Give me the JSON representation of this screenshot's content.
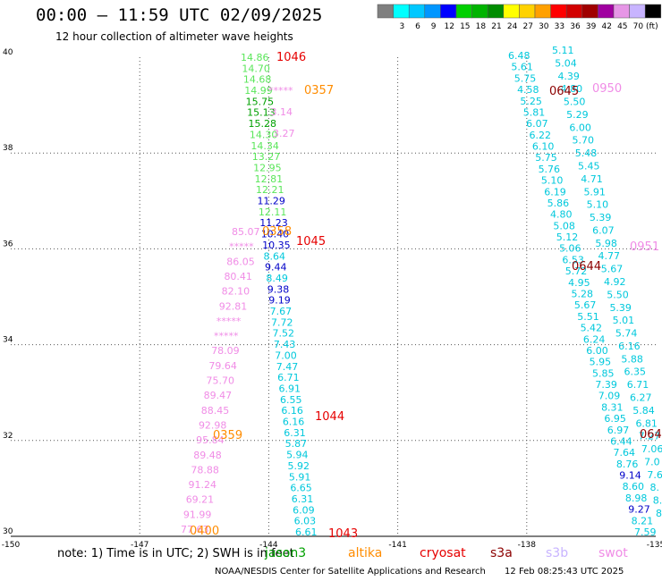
{
  "header": {
    "title": "00:00 – 11:59 UTC 02/09/2025",
    "subtitle": "12 hour collection of altimeter wave heights"
  },
  "legend": {
    "unit": "(ft)",
    "bins": [
      {
        "label": "",
        "color": "#7f7f7f"
      },
      {
        "label": "3",
        "color": "#00ffff"
      },
      {
        "label": "6",
        "color": "#00c8ff"
      },
      {
        "label": "9",
        "color": "#0096ff"
      },
      {
        "label": "12",
        "color": "#0000ff"
      },
      {
        "label": "15",
        "color": "#00d000"
      },
      {
        "label": "18",
        "color": "#00b400"
      },
      {
        "label": "21",
        "color": "#008c00"
      },
      {
        "label": "24",
        "color": "#ffff00"
      },
      {
        "label": "27",
        "color": "#ffd200"
      },
      {
        "label": "30",
        "color": "#ffa000"
      },
      {
        "label": "33",
        "color": "#ff0000"
      },
      {
        "label": "36",
        "color": "#d20000"
      },
      {
        "label": "39",
        "color": "#a00000"
      },
      {
        "label": "42",
        "color": "#a000a0"
      },
      {
        "label": "45",
        "color": "#e696e6"
      },
      {
        "label": "70",
        "color": "#c8b4ff"
      },
      {
        "label": "",
        "color": "#000000"
      }
    ]
  },
  "map": {
    "lon_range": [
      -150,
      -135
    ],
    "lat_range": [
      30,
      40
    ],
    "x_ticks": [
      "-150",
      "-147",
      "-144",
      "-141",
      "-138",
      "-135"
    ],
    "y_ticks": [
      "40",
      "38",
      "36",
      "34",
      "32",
      "30"
    ]
  },
  "colors": {
    "green": "#5ae65a",
    "darkgreen": "#00a000",
    "blue": "#0000c8",
    "cyan": "#00c8dc",
    "pink": "#f08ce6",
    "orange": "#ff8c00",
    "red": "#e60000",
    "darkred": "#8c0000"
  },
  "tracks": [
    {
      "labels": [
        {
          "t": "14.86",
          "c": "green"
        },
        {
          "t": "14.70",
          "c": "green"
        },
        {
          "t": "14.68",
          "c": "green"
        },
        {
          "t": "14.99",
          "c": "green"
        },
        {
          "t": "15.75",
          "c": "darkgreen"
        },
        {
          "t": "15.13",
          "c": "darkgreen"
        },
        {
          "t": "15.28",
          "c": "darkgreen"
        },
        {
          "t": "14.30",
          "c": "green"
        },
        {
          "t": "14.34",
          "c": "green"
        },
        {
          "t": "13.27",
          "c": "green"
        },
        {
          "t": "12.95",
          "c": "green"
        },
        {
          "t": "12.81",
          "c": "green"
        },
        {
          "t": "12.21",
          "c": "green"
        },
        {
          "t": "11.29",
          "c": "blue"
        },
        {
          "t": "12.11",
          "c": "green"
        },
        {
          "t": "11.23",
          "c": "blue"
        },
        {
          "t": "10.40",
          "c": "blue"
        },
        {
          "t": "10.35",
          "c": "blue"
        },
        {
          "t": "8.64",
          "c": "cyan"
        },
        {
          "t": "9.44",
          "c": "blue"
        },
        {
          "t": "8.49",
          "c": "cyan"
        },
        {
          "t": "9.38",
          "c": "blue"
        },
        {
          "t": "9.19",
          "c": "blue"
        },
        {
          "t": "7.67",
          "c": "cyan"
        },
        {
          "t": "7.72",
          "c": "cyan"
        },
        {
          "t": "7.52",
          "c": "cyan"
        },
        {
          "t": "7.43",
          "c": "cyan"
        },
        {
          "t": "7.00",
          "c": "cyan"
        },
        {
          "t": "7.47",
          "c": "cyan"
        },
        {
          "t": "6.71",
          "c": "cyan"
        },
        {
          "t": "6.91",
          "c": "cyan"
        },
        {
          "t": "6.55",
          "c": "cyan"
        },
        {
          "t": "6.16",
          "c": "cyan"
        },
        {
          "t": "6.16",
          "c": "cyan"
        },
        {
          "t": "6.31",
          "c": "cyan"
        },
        {
          "t": "5.87",
          "c": "cyan"
        },
        {
          "t": "5.94",
          "c": "cyan"
        },
        {
          "t": "5.92",
          "c": "cyan"
        },
        {
          "t": "5.91",
          "c": "cyan"
        },
        {
          "t": "6.65",
          "c": "cyan"
        },
        {
          "t": "6.31",
          "c": "cyan"
        },
        {
          "t": "6.09",
          "c": "cyan"
        },
        {
          "t": "6.03",
          "c": "cyan"
        },
        {
          "t": "6.61",
          "c": "cyan"
        }
      ]
    },
    {
      "labels": [
        {
          "t": "*****",
          "c": "pink"
        },
        {
          "t": "3.14",
          "c": "pink"
        },
        {
          "t": "3.27",
          "c": "pink"
        }
      ]
    },
    {
      "labels": [
        {
          "t": "85.07",
          "c": "pink"
        },
        {
          "t": "*****",
          "c": "pink"
        },
        {
          "t": "86.05",
          "c": "pink"
        },
        {
          "t": "80.41",
          "c": "pink"
        },
        {
          "t": "82.10",
          "c": "pink"
        },
        {
          "t": "92.81",
          "c": "pink"
        },
        {
          "t": "*****",
          "c": "pink"
        },
        {
          "t": "*****",
          "c": "pink"
        },
        {
          "t": "78.09",
          "c": "pink"
        },
        {
          "t": "79.64",
          "c": "pink"
        },
        {
          "t": "75.70",
          "c": "pink"
        },
        {
          "t": "89.47",
          "c": "pink"
        },
        {
          "t": "88.45",
          "c": "pink"
        },
        {
          "t": "92.98",
          "c": "pink"
        },
        {
          "t": "95.84",
          "c": "pink"
        },
        {
          "t": "89.48",
          "c": "pink"
        },
        {
          "t": "78.88",
          "c": "pink"
        },
        {
          "t": "91.24",
          "c": "pink"
        },
        {
          "t": "69.21",
          "c": "pink"
        },
        {
          "t": "91.99",
          "c": "pink"
        },
        {
          "t": "77.63",
          "c": "pink"
        }
      ]
    },
    {
      "labels": [
        {
          "t": "6.48",
          "c": "cyan"
        },
        {
          "t": "5.61",
          "c": "cyan"
        },
        {
          "t": "5.75",
          "c": "cyan"
        },
        {
          "t": "4.58",
          "c": "cyan"
        },
        {
          "t": "5.25",
          "c": "cyan"
        },
        {
          "t": "5.81",
          "c": "cyan"
        },
        {
          "t": "6.07",
          "c": "cyan"
        },
        {
          "t": "6.22",
          "c": "cyan"
        },
        {
          "t": "6.10",
          "c": "cyan"
        },
        {
          "t": "5.75",
          "c": "cyan"
        },
        {
          "t": "5.76",
          "c": "cyan"
        },
        {
          "t": "5.10",
          "c": "cyan"
        },
        {
          "t": "6.19",
          "c": "cyan"
        },
        {
          "t": "5.86",
          "c": "cyan"
        },
        {
          "t": "4.80",
          "c": "cyan"
        },
        {
          "t": "5.08",
          "c": "cyan"
        },
        {
          "t": "5.12",
          "c": "cyan"
        },
        {
          "t": "5.06",
          "c": "cyan"
        },
        {
          "t": "6.53",
          "c": "cyan"
        },
        {
          "t": "5.72",
          "c": "cyan"
        },
        {
          "t": "4.95",
          "c": "cyan"
        },
        {
          "t": "5.28",
          "c": "cyan"
        },
        {
          "t": "5.67",
          "c": "cyan"
        },
        {
          "t": "5.51",
          "c": "cyan"
        },
        {
          "t": "5.42",
          "c": "cyan"
        },
        {
          "t": "6.24",
          "c": "cyan"
        },
        {
          "t": "6.00",
          "c": "cyan"
        },
        {
          "t": "5.95",
          "c": "cyan"
        },
        {
          "t": "5.85",
          "c": "cyan"
        },
        {
          "t": "7.39",
          "c": "cyan"
        },
        {
          "t": "7.09",
          "c": "cyan"
        },
        {
          "t": "8.31",
          "c": "cyan"
        },
        {
          "t": "6.95",
          "c": "cyan"
        },
        {
          "t": "6.97",
          "c": "cyan"
        },
        {
          "t": "6.44",
          "c": "cyan"
        },
        {
          "t": "7.64",
          "c": "cyan"
        },
        {
          "t": "8.76",
          "c": "cyan"
        },
        {
          "t": "9.14",
          "c": "blue"
        },
        {
          "t": "8.60",
          "c": "cyan"
        },
        {
          "t": "8.98",
          "c": "cyan"
        },
        {
          "t": "9.27",
          "c": "blue"
        },
        {
          "t": "8.21",
          "c": "cyan"
        },
        {
          "t": "7.59",
          "c": "cyan"
        }
      ]
    },
    {
      "labels": [
        {
          "t": "5.11",
          "c": "cyan"
        },
        {
          "t": "5.04",
          "c": "cyan"
        },
        {
          "t": "4.39",
          "c": "cyan"
        },
        {
          "t": "4.80",
          "c": "cyan"
        },
        {
          "t": "5.50",
          "c": "cyan"
        },
        {
          "t": "5.29",
          "c": "cyan"
        },
        {
          "t": "6.00",
          "c": "cyan"
        },
        {
          "t": "5.70",
          "c": "cyan"
        },
        {
          "t": "5.48",
          "c": "cyan"
        },
        {
          "t": "5.45",
          "c": "cyan"
        },
        {
          "t": "4.71",
          "c": "cyan"
        },
        {
          "t": "5.91",
          "c": "cyan"
        },
        {
          "t": "5.10",
          "c": "cyan"
        },
        {
          "t": "5.39",
          "c": "cyan"
        },
        {
          "t": "6.07",
          "c": "cyan"
        },
        {
          "t": "5.98",
          "c": "cyan"
        },
        {
          "t": "4.77",
          "c": "cyan"
        },
        {
          "t": "5.67",
          "c": "cyan"
        },
        {
          "t": "4.92",
          "c": "cyan"
        },
        {
          "t": "5.50",
          "c": "cyan"
        },
        {
          "t": "5.39",
          "c": "cyan"
        },
        {
          "t": "5.01",
          "c": "cyan"
        },
        {
          "t": "5.74",
          "c": "cyan"
        },
        {
          "t": "6.16",
          "c": "cyan"
        },
        {
          "t": "5.88",
          "c": "cyan"
        },
        {
          "t": "6.35",
          "c": "cyan"
        },
        {
          "t": "6.71",
          "c": "cyan"
        },
        {
          "t": "6.27",
          "c": "cyan"
        },
        {
          "t": "5.84",
          "c": "cyan"
        },
        {
          "t": "6.81",
          "c": "cyan"
        },
        {
          "t": "7.27",
          "c": "cyan"
        },
        {
          "t": "7.06",
          "c": "cyan"
        },
        {
          "t": "7.0",
          "c": "cyan"
        },
        {
          "t": "7.6",
          "c": "cyan"
        },
        {
          "t": "8.",
          "c": "cyan"
        },
        {
          "t": "8.",
          "c": "cyan"
        },
        {
          "t": "8",
          "c": "cyan"
        }
      ]
    }
  ],
  "time_tags": [
    {
      "t": "1046",
      "c": "red"
    },
    {
      "t": "0357",
      "c": "orange"
    },
    {
      "t": "0358",
      "c": "orange"
    },
    {
      "t": "1045",
      "c": "red"
    },
    {
      "t": "1044",
      "c": "red"
    },
    {
      "t": "0359",
      "c": "orange"
    },
    {
      "t": "0400",
      "c": "orange"
    },
    {
      "t": "1043",
      "c": "red"
    },
    {
      "t": "0645",
      "c": "darkred"
    },
    {
      "t": "0950",
      "c": "pink"
    },
    {
      "t": "0951",
      "c": "pink"
    },
    {
      "t": "0644",
      "c": "darkred"
    },
    {
      "t": "064",
      "c": "darkred"
    }
  ],
  "footer": {
    "note": "note:  1) Time is in UTC;  2) SWH is in feet",
    "missions": [
      {
        "name": "jason3",
        "color": "#00a000"
      },
      {
        "name": "altika",
        "color": "#ff8c00"
      },
      {
        "name": "cryosat",
        "color": "#e60000"
      },
      {
        "name": "s3a",
        "color": "#8c0000"
      },
      {
        "name": "s3b",
        "color": "#c8b4ff"
      },
      {
        "name": "swot",
        "color": "#f08ce6"
      }
    ],
    "credit": "NOAA/NESDIS Center for Satellite Applications and Research",
    "timestamp": "12 Feb 08:25:43 UTC 2025"
  }
}
